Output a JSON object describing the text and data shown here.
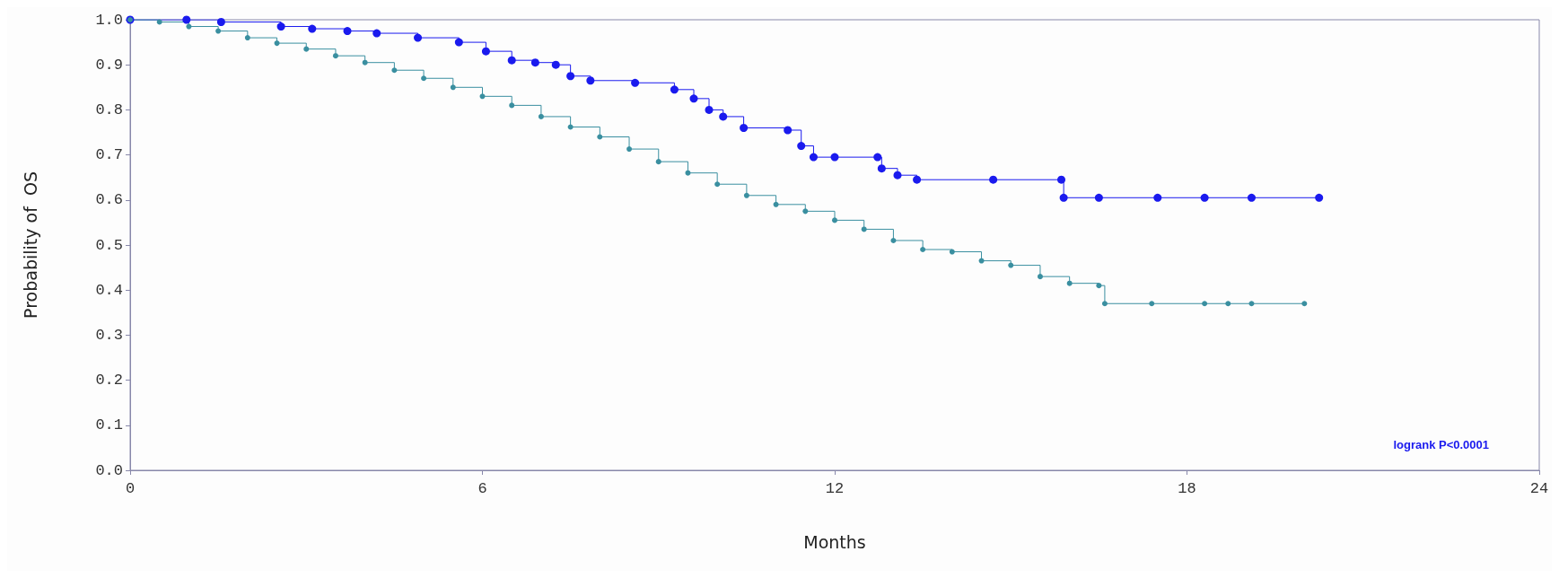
{
  "chart_data": {
    "type": "step",
    "xlabel": "Months",
    "ylabel": "Probability of  OS",
    "annotations": [
      "logrank P<0.0001"
    ],
    "xlim": [
      0,
      24
    ],
    "xticks": [
      0,
      6,
      12,
      18,
      24
    ],
    "ylim": [
      0,
      1
    ],
    "yticks": [
      {
        "value": 0,
        "label": "0.0"
      },
      {
        "value": 0.1,
        "label": "0.1"
      },
      {
        "value": 0.2,
        "label": "0.2"
      },
      {
        "value": 0.3,
        "label": "0.3"
      },
      {
        "value": 0.4,
        "label": "0.4"
      },
      {
        "value": 0.5,
        "label": "0.5"
      },
      {
        "value": 0.6,
        "label": "0.6"
      },
      {
        "value": 0.7,
        "label": "0.7"
      },
      {
        "value": 0.8,
        "label": "0.8"
      },
      {
        "value": 0.9,
        "label": "0.9"
      },
      {
        "value": 1,
        "label": "1.0"
      }
    ],
    "grid": false,
    "marker": "circle",
    "line_style": "solid",
    "series": [
      {
        "color": "#1a1aee",
        "x": [
          0,
          0.96,
          1.55,
          2.57,
          3.1,
          3.7,
          4.2,
          4.9,
          5.6,
          6.06,
          6.5,
          6.9,
          7.25,
          7.5,
          7.84,
          8.6,
          9.27,
          9.6,
          9.86,
          10.1,
          10.45,
          11.2,
          11.43,
          11.64,
          12,
          12.73,
          12.8,
          13.07,
          13.4,
          14.7,
          15.86,
          15.9,
          16.5,
          17.5,
          18.3,
          19.1,
          20.25
        ],
        "values": [
          1,
          1,
          0.995,
          0.985,
          0.98,
          0.975,
          0.97,
          0.96,
          0.95,
          0.93,
          0.91,
          0.905,
          0.9,
          0.875,
          0.865,
          0.86,
          0.845,
          0.825,
          0.8,
          0.785,
          0.76,
          0.755,
          0.72,
          0.695,
          0.695,
          0.695,
          0.67,
          0.655,
          0.645,
          0.645,
          0.645,
          0.605,
          0.605,
          0.605,
          0.605,
          0.605,
          0.605
        ]
      },
      {
        "color": "#3a8fa0",
        "x": [
          0,
          0.5,
          1,
          1.5,
          2,
          2.5,
          3,
          3.5,
          4,
          4.5,
          5,
          5.5,
          6,
          6.5,
          7,
          7.5,
          8,
          8.5,
          9,
          9.5,
          10,
          10.5,
          11,
          11.5,
          12,
          12.5,
          13,
          13.5,
          14,
          14.5,
          15,
          15.5,
          16,
          16.5,
          16.6,
          17.4,
          18.3,
          18.7,
          19.1,
          20
        ],
        "values": [
          1,
          0.995,
          0.985,
          0.975,
          0.96,
          0.948,
          0.935,
          0.92,
          0.905,
          0.888,
          0.87,
          0.85,
          0.83,
          0.81,
          0.785,
          0.762,
          0.74,
          0.713,
          0.685,
          0.66,
          0.635,
          0.61,
          0.59,
          0.575,
          0.555,
          0.535,
          0.51,
          0.49,
          0.485,
          0.465,
          0.455,
          0.43,
          0.415,
          0.41,
          0.37,
          0.37,
          0.37,
          0.37,
          0.37,
          0.37
        ]
      }
    ]
  }
}
